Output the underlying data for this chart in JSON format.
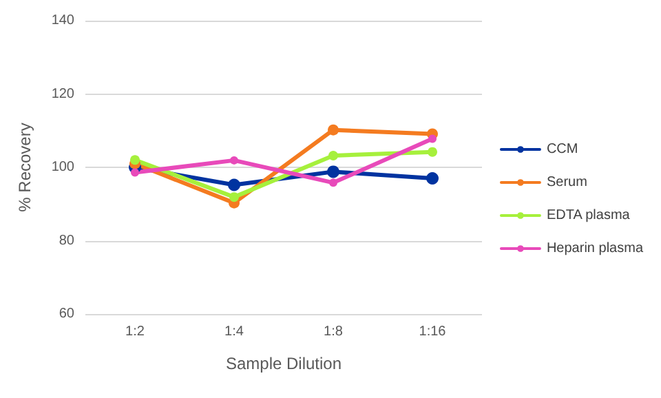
{
  "chart_data": {
    "type": "line",
    "xlabel": "Sample Dilution",
    "ylabel": "% Recovery",
    "categories": [
      "1:2",
      "1:4",
      "1:8",
      "1:16"
    ],
    "series": [
      {
        "name": "CCM",
        "color": "#0033a0",
        "values": [
          100,
          95.2,
          98.8,
          97
        ]
      },
      {
        "name": "Serum",
        "color": "#f47b20",
        "values": [
          101,
          90.3,
          110.2,
          109.1
        ]
      },
      {
        "name": "EDTA plasma",
        "color": "#a6f03c",
        "values": [
          102,
          91.9,
          103.2,
          104.2
        ]
      },
      {
        "name": "Heparin plasma",
        "color": "#e84aba",
        "values": [
          98.6,
          101.9,
          95.8,
          107.8
        ]
      }
    ],
    "ylim": [
      60,
      140
    ],
    "yticks": [
      60,
      80,
      100,
      120,
      140
    ],
    "grid": "y",
    "legend": "right",
    "marker": "circle",
    "line_style": "solid"
  }
}
